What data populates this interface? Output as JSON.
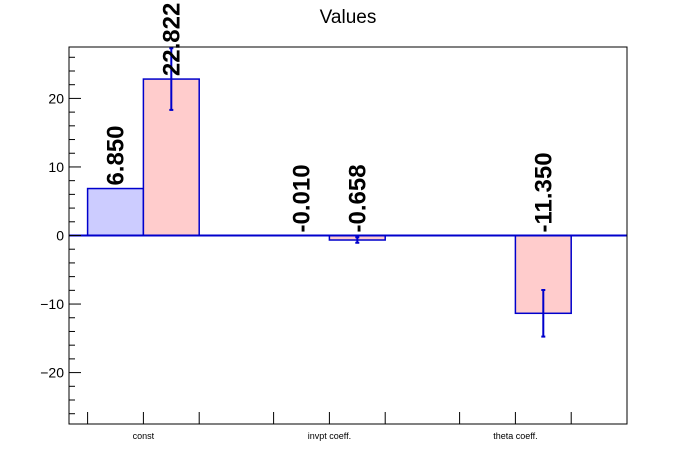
{
  "chart_data": {
    "type": "bar",
    "title": "Values",
    "xlabel": "",
    "ylabel": "",
    "categories": [
      "const",
      "invpt coeff.",
      "theta coeff."
    ],
    "ylim": [
      -27.5,
      27.5
    ],
    "yticks": [
      -20,
      -10,
      0,
      10,
      20
    ],
    "grid": false,
    "legend": "none",
    "series": [
      {
        "values": [
          6.85,
          -0.01,
          0
        ],
        "errors": [
          0,
          0,
          0
        ],
        "labels": [
          "6.850",
          "-0.010",
          ""
        ],
        "fill_color": "#ccccff",
        "edge_color": "#0000cc"
      },
      {
        "values": [
          22.822,
          -0.658,
          -11.35
        ],
        "errors": [
          4.5,
          0.4,
          3.4
        ],
        "labels": [
          "22.822",
          "-0.658",
          "-11.350"
        ],
        "fill_color": "#ffcccc",
        "edge_color": "#0000cc"
      }
    ]
  }
}
